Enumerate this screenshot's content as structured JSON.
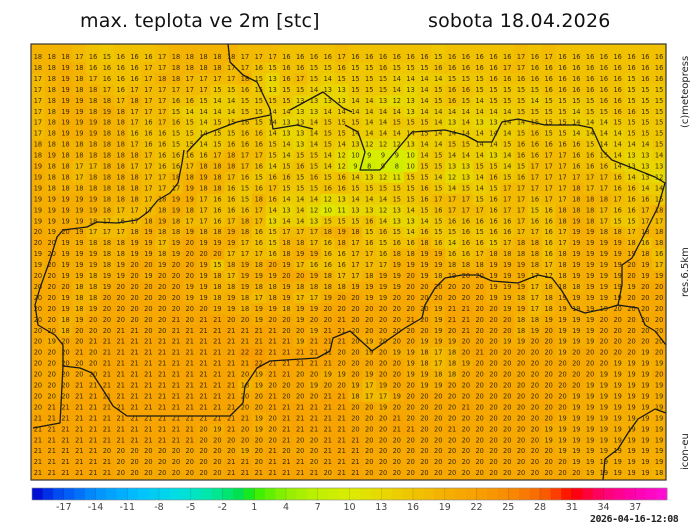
{
  "header": {
    "title": "max. teplota ve 2m [stc]",
    "date": "sobota 18.04.2026"
  },
  "side_labels": {
    "copyright": "(c)meteopress",
    "resolution": "res.6.5km",
    "model": "icon-eu"
  },
  "timestamp": "2026-04-16-12:08",
  "colorbar": {
    "range": [
      -20,
      40
    ],
    "tick_labels": [
      "-17",
      "-14",
      "-11",
      "-8",
      "-5",
      "-2",
      "1",
      "4",
      "7",
      "10",
      "13",
      "16",
      "19",
      "22",
      "25",
      "28",
      "31",
      "34",
      "37"
    ],
    "stops": [
      [
        -20,
        "#0000c8"
      ],
      [
        -18,
        "#0040f0"
      ],
      [
        -14,
        "#0090ff"
      ],
      [
        -10,
        "#00c0ff"
      ],
      [
        -6,
        "#00e0e0"
      ],
      [
        -3,
        "#00e8a0"
      ],
      [
        0,
        "#00e040"
      ],
      [
        1,
        "#30f000"
      ],
      [
        4,
        "#90f000"
      ],
      [
        7,
        "#c0f000"
      ],
      [
        10,
        "#dcec00"
      ],
      [
        13,
        "#e8d800"
      ],
      [
        16,
        "#f0c400"
      ],
      [
        19,
        "#f4b000"
      ],
      [
        22,
        "#f8a000"
      ],
      [
        25,
        "#f88c00"
      ],
      [
        28,
        "#f86800"
      ],
      [
        30,
        "#ff3000"
      ],
      [
        31,
        "#ff0000"
      ],
      [
        34,
        "#ff0070"
      ],
      [
        37,
        "#ff00b0"
      ],
      [
        40,
        "#ff10d8"
      ]
    ]
  },
  "map": {
    "border_color": "#1a1a1a",
    "grid_values": [
      "18 18 18 17 16 15 16 16 16 17 18 18 18 18 18 17 17 17 16 16 16 16 17 16 16 16 16 16 16 15 16 16 16 16 16 17 16 17 16 16 16 16 16 16 16 16",
      "18 18 19 18 16 16 16 16 17 17 18 18 18 18 17 17 16 15 16 16 15 15 16 15 15 16 15 15 15 16 16 16 16 16 17 17 16 16 16 16 16 16 16 16 16 16",
      "17 18 19 18 17 16 16 16 17 18 18 17 17 17 17 18 15 13 16 17 15 14 15 15 15 15 14 14 14 14 15 15 15 16 16 16 16 16 16 16 16 16 16 15 16 16",
      "17 18 19 18 18 17 16 17 17 17 17 17 17 15 15 16 15 13 15 15 14 13 13 15 15 15 14 13 14 15 16 16 15 15 15 15 15 16 16 16 16 16 16 15 15 15",
      "17 18 19 19 18 18 17 18 17 17 16 16 15 14 14 15 15 15 15 13 13 13 13 14 14 13 12 13 14 15 16 15 14 15 15 15 14 15 15 15 15 16 16 15 15 15",
      "17 18 19 19 18 19 18 17 17 17 15 14 14 14 14 15 15 14 14 13 13 14 14 14 14 14 14 13 14 14 14 14 14 14 14 15 15 15 15 14 15 15 16 16 15 15",
      "17 18 19 19 19 18 18 17 16 17 16 15 14 15 15 16 15 14 13 13 14 15 15 15 14 14 15 15 15 14 13 14 13 13 14 14 15 15 15 14 14 14 15 15 15 15",
      "17 18 19 19 19 18 18 16 16 16 15 15 14 15 15 16 16 14 13 13 14 15 15 14 14 14 14 14 15 14 14 14 14 14 14 15 16 15 15 14 14 14 14 15 15 15",
      "18 18 18 18 18 18 18 17 16 16 15 15 14 15 16 16 16 15 14 13 14 15 14 13 12 12 12 13 14 14 15 15 14 14 15 16 16 16 16 16 15 14 14 14 14 15",
      "18 19 18 18 18 18 18 18 17 16 16 16 16 17 18 17 17 15 14 15 15 14 12 10 9 9 9 10 14 15 14 14 14 13 14 16 16 17 17 16 16 15 14 13 13 14",
      "19 18 18 17 17 18 18 17 17 16 16 17 18 18 18 17 16 14 15 16 15 14 12 9 8 9 8 10 15 15 13 13 15 15 14 15 17 17 17 16 16 16 14 13 13 13",
      "19 18 18 17 18 18 18 18 17 17 18 18 19 18 17 16 15 16 16 15 16 15 16 14 13 12 11 15 15 14 12 13 14 16 15 16 17 17 17 17 17 17 16 14 13 12",
      "19 18 18 18 18 18 18 18 17 17 17 19 18 18 16 15 16 17 15 15 15 16 16 15 15 15 15 15 16 15 14 15 14 15 17 17 17 17 17 18 17 17 16 16 14 14",
      "19 19 19 19 19 18 18 18 17 18 19 19 17 16 16 15 18 16 14 14 14 12 13 14 14 14 15 15 16 17 17 17 15 16 17 17 16 17 17 18 18 18 17 16 16 15",
      "19 19 19 19 19 18 17 17 17 18 19 18 17 16 16 16 17 14 13 14 12 10 11 13 13 12 13 14 15 16 17 17 17 16 17 17 15 16 18 18 18 17 16 16 17 18",
      "19 19 19 19 18 17 16 17 18 19 18 17 17 16 17 18 17 13 14 14 13 15 15 15 16 14 13 13 14 15 16 16 16 16 16 17 16 16 18 19 18 17 15 15 17 17",
      "20 19 20 19 17 17 17 18 19 18 18 19 18 18 19 18 16 15 17 17 17 18 19 18 15 16 15 14 16 15 15 16 15 16 16 17 17 16 17 19 19 18 18 17 18 18",
      "20 20 19 19 18 18 18 19 19 17 19 20 19 19 19 17 16 15 18 18 17 16 18 17 16 15 16 16 18 16 14 16 16 15 17 18 18 16 17 19 19 19 19 18 16 18",
      "19 20 19 19 19 18 18 19 19 18 19 20 20 20 17 17 17 16 18 19 19 16 16 17 17 16 18 18 19 19 16 16 17 18 18 18 18 16 18 19 19 19 19 19 18 16",
      "19 20 19 19 19 18 19 20 20 19 20 20 19 15 18 19 18 20 19 17 16 16 16 17 17 17 19 19 19 19 18 18 18 19 19 19 18 17 18 19 19 19 19 20 19 17",
      "20 20 19 19 18 19 19 20 19 20 20 20 19 18 17 19 19 19 20 20 19 18 17 17 18 19 19 20 19 18 19 20 20 19 19 19 17 17 18 19 19 19 19 20 19 19",
      "20 20 20 18 18 19 20 20 20 20 20 19 19 18 18 19 18 18 19 18 18 18 18 19 19 19 19 20 20 20 20 20 20 19 19 19 17 18 18 18 19 19 19 19 20 20",
      "20 20 19 18 18 20 20 20 20 20 20 19 19 18 19 18 17 18 19 17 17 19 20 20 19 19 20 20 20 20 20 20 20 19 19 18 17 18 19 19 19 19 19 20 20 20",
      "20 20 19 18 19 20 20 20 20 20 20 20 20 19 19 18 19 19 18 19 19 20 20 20 20 20 20 20 20 19 21 21 20 20 19 19 17 18 19 19 19 19 20 20 20 20",
      "20 20 18 19 20 20 20 20 20 20 21 20 21 21 20 20 19 20 20 19 20 20 21 20 20 20 20 21 20 19 21 21 20 20 20 18 18 19 19 19 19 20 20 20 20 20",
      "20 20 18 20 20 20 21 21 20 20 21 21 21 21 21 21 21 21 20 20 19 21 21 20 20 20 20 20 20 19 20 21 20 20 20 18 19 20 19 19 19 20 20 20 20 20",
      "20 19 20 20 21 21 21 21 21 21 21 21 21 21 21 21 21 21 21 19 21 21 21 20 19 20 20 20 19 19 19 20 20 20 19 19 20 20 19 19 19 20 20 20 20 20",
      "20 20 20 21 20 21 21 21 21 21 21 21 21 21 21 22 22 21 21 21 21 21 20 20 19 20 19 19 18 17 18 20 21 20 20 20 20 20 19 20 20 20 20 20 19 20",
      "20 20 20 20 20 21 21 21 21 21 21 21 21 21 21 21 22 21 21 21 21 21 20 20 20 20 20 19 18 17 18 19 20 20 20 20 20 20 20 20 20 20 19 19 19 19",
      "20 20 20 20 20 21 21 21 21 21 21 21 21 21 21 20 19 21 21 20 20 19 19 20 19 20 20 19 19 18 18 20 20 20 20 20 20 20 20 20 20 19 19 19 19 20",
      "20 20 20 21 21 21 21 21 21 21 21 21 21 21 21 18 19 20 20 20 19 20 20 19 17 19 20 20 19 19 20 20 20 20 20 20 20 20 20 20 19 19 19 19 19 19",
      "20 20 20 21 21 21 21 21 21 21 21 21 21 21 21 20 20 21 20 20 20 21 21 18 17 17 19 20 20 20 20 20 20 20 20 20 20 20 20 19 19 19 19 19 19 19",
      "20 21 21 21 21 21 21 21 21 21 21 21 21 21 21 20 20 21 21 21 21 21 21 20 20 19 20 20 20 20 20 21 20 20 20 20 20 20 20 19 19 19 19 19 19 19",
      "21 21 21 21 21 21 21 21 21 21 21 21 21 21 21 21 19 20 21 21 21 21 21 20 20 20 21 20 20 20 20 20 20 20 20 20 20 20 19 19 19 19 19 19 19 19",
      "21 21 21 21 21 21 21 21 21 21 21 21 20 19 21 20 19 20 21 21 21 21 21 20 20 20 21 21 20 20 21 20 20 20 20 20 20 19 19 19 19 19 19 19 19 19",
      "21 21 21 21 21 21 21 21 21 21 21 21 20 20 20 20 20 20 21 20 20 21 21 21 20 20 20 20 20 20 20 20 20 20 20 20 20 19 19 19 19 19 19 19 19 19",
      "21 21 21 21 21 20 20 20 20 20 20 20 20 20 20 19 20 21 20 20 20 21 21 21 20 20 20 20 20 20 20 20 20 20 20 20 20 20 19 19 19 19 19 19 19 19",
      "21 21 21 21 21 21 20 20 20 20 20 20 20 20 21 21 20 21 21 21 20 21 21 21 20 20 20 20 20 20 20 20 20 20 20 20 20 20 20 19 19 19 19 19 19 19",
      "21 21 21 21 21 21 20 20 20 20 20 20 20 20 21 21 21 21 21 21 21 20 21 21 20 20 20 20 20 20 20 20 20 20 20 20 20 20 20 20 19 19 19 19 19 18"
    ]
  }
}
